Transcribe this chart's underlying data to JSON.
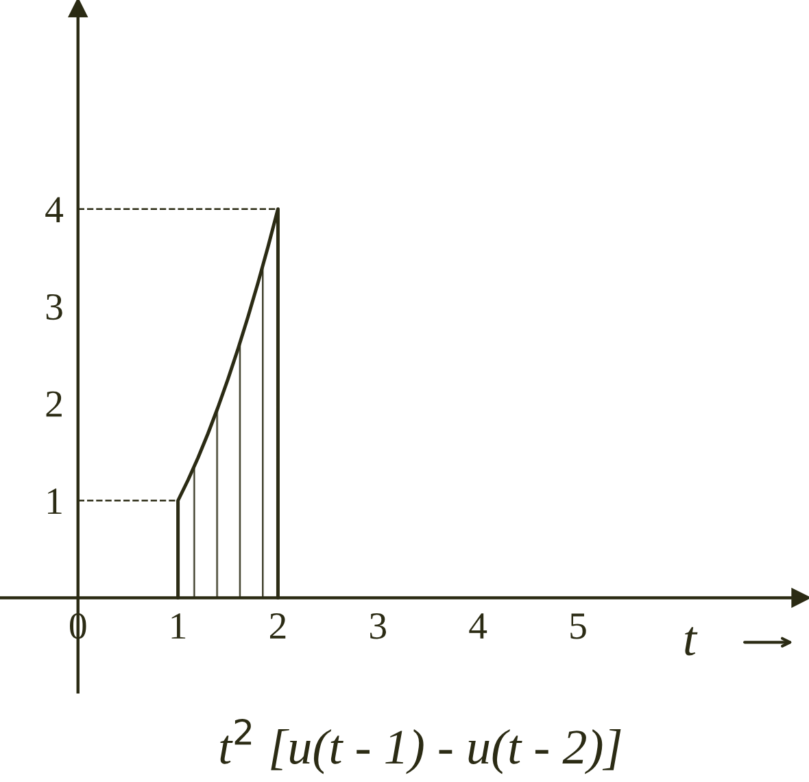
{
  "chart_data": {
    "type": "area",
    "title": "t$^{2}$ [u(t - 1) - u(t - 2)]",
    "xlabel": "t",
    "series": [
      {
        "color": "#2b2b14",
        "x": [
          1,
          1.1,
          1.2,
          1.3,
          1.4,
          1.5,
          1.6,
          1.7,
          1.8,
          1.9,
          2
        ],
        "values": [
          1,
          1.21,
          1.44,
          1.69,
          1.96,
          2.25,
          2.56,
          2.89,
          3.24,
          3.61,
          4
        ]
      }
    ],
    "xlim": [
      -0.78,
      7.23
    ],
    "ylim": [
      -0.97,
      6.07
    ],
    "xticks": [
      {
        "value": 0,
        "label": "0"
      },
      1,
      2,
      3,
      4,
      5
    ],
    "yticks": [
      1,
      2,
      3,
      4
    ],
    "ref_lines": [
      {
        "axis": "y",
        "value": 1,
        "line_style": "dashed",
        "color": "#2b2b14"
      },
      {
        "axis": "y",
        "value": 4,
        "line_style": "dashed",
        "color": "#2b2b14"
      }
    ],
    "grid": false,
    "legend": false
  }
}
